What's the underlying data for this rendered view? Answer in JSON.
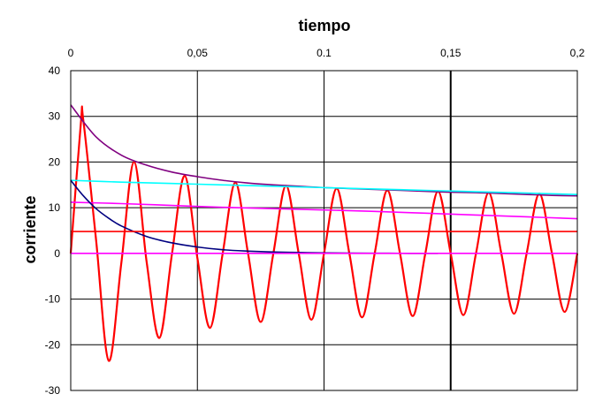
{
  "chart_data": {
    "type": "line",
    "title": "tiempo",
    "xlabel": "tiempo",
    "ylabel": "corriente",
    "xlim": [
      0,
      0.2
    ],
    "ylim": [
      -30,
      40
    ],
    "x_ticks": [
      "0",
      "0,05",
      "0.1",
      "0,15",
      "0,2"
    ],
    "x_tick_values": [
      0,
      0.05,
      0.1,
      0.15,
      0.2
    ],
    "y_ticks": [
      "40",
      "30",
      "20",
      "10",
      "0",
      "-10",
      "-20",
      "-30"
    ],
    "y_tick_values": [
      40,
      30,
      20,
      10,
      0,
      -10,
      -20,
      -30
    ],
    "grid": true,
    "x_axis_position": "top",
    "series": [
      {
        "color": "#ff0000",
        "x": [
          0,
          0.004,
          0.005,
          0.01,
          0.015,
          0.02,
          0.025,
          0.03,
          0.035,
          0.04,
          0.045,
          0.05,
          0.055,
          0.06,
          0.065,
          0.07,
          0.075,
          0.08,
          0.085,
          0.09,
          0.095,
          0.1,
          0.105,
          0.11,
          0.115,
          0.12,
          0.125,
          0.13,
          0.135,
          0.14,
          0.145,
          0.15,
          0.155,
          0.16,
          0.165,
          0.17,
          0.175,
          0.18,
          0.185,
          0.19,
          0.195,
          0.2
        ],
        "values": [
          0,
          28.5,
          29,
          3,
          -23.5,
          -2,
          20,
          -2,
          -18.5,
          0,
          17,
          -1,
          -16.3,
          0,
          15.5,
          0,
          -15,
          0,
          14.8,
          0,
          -14.5,
          0,
          14.2,
          0,
          -14,
          0,
          13.8,
          0,
          -13.7,
          0,
          13.6,
          0,
          -13.5,
          0,
          13.3,
          0,
          -13.2,
          0,
          13.1,
          0,
          -12.8,
          0
        ]
      },
      {
        "color": "#800080",
        "x": [
          0,
          0.01,
          0.02,
          0.03,
          0.04,
          0.05,
          0.06,
          0.07,
          0.08,
          0.09,
          0.1,
          0.11,
          0.12,
          0.13,
          0.14,
          0.15,
          0.16,
          0.17,
          0.18,
          0.19,
          0.2
        ],
        "values": [
          32.5,
          25.5,
          21.5,
          19.3,
          17.8,
          16.8,
          16.0,
          15.4,
          15.0,
          14.7,
          14.4,
          14.2,
          14.0,
          13.8,
          13.6,
          13.4,
          13.3,
          13.1,
          12.9,
          12.7,
          12.6
        ]
      },
      {
        "color": "#00ffff",
        "x": [
          0,
          0.02,
          0.04,
          0.06,
          0.08,
          0.1,
          0.12,
          0.14,
          0.16,
          0.18,
          0.2
        ],
        "values": [
          16,
          15.6,
          15.3,
          15.0,
          14.7,
          14.4,
          14.1,
          13.8,
          13.5,
          13.2,
          12.9
        ]
      },
      {
        "color": "#ff00ff",
        "x": [
          0,
          0.02,
          0.04,
          0.06,
          0.08,
          0.1,
          0.12,
          0.14,
          0.16,
          0.18,
          0.2
        ],
        "values": [
          11.2,
          10.9,
          10.5,
          10.1,
          9.8,
          9.5,
          9.2,
          8.8,
          8.4,
          8.0,
          7.6
        ]
      },
      {
        "color": "#000080",
        "x": [
          0,
          0.005,
          0.01,
          0.015,
          0.02,
          0.03,
          0.04,
          0.05,
          0.06,
          0.07,
          0.08,
          0.09,
          0.1,
          0.11,
          0.12,
          0.13,
          0.14,
          0.145
        ],
        "values": [
          16,
          12.6,
          9.8,
          7.7,
          6.0,
          3.7,
          2.3,
          1.4,
          0.8,
          0.5,
          0.3,
          0.2,
          0.1,
          0.05,
          0.03,
          0.02,
          0.01,
          0
        ]
      },
      {
        "color": "#ff0000",
        "x": [
          0,
          0.2
        ],
        "values": [
          4.8,
          4.8
        ]
      },
      {
        "color": "#ff00ff",
        "x": [
          0,
          0.2
        ],
        "values": [
          0,
          0
        ]
      }
    ]
  }
}
